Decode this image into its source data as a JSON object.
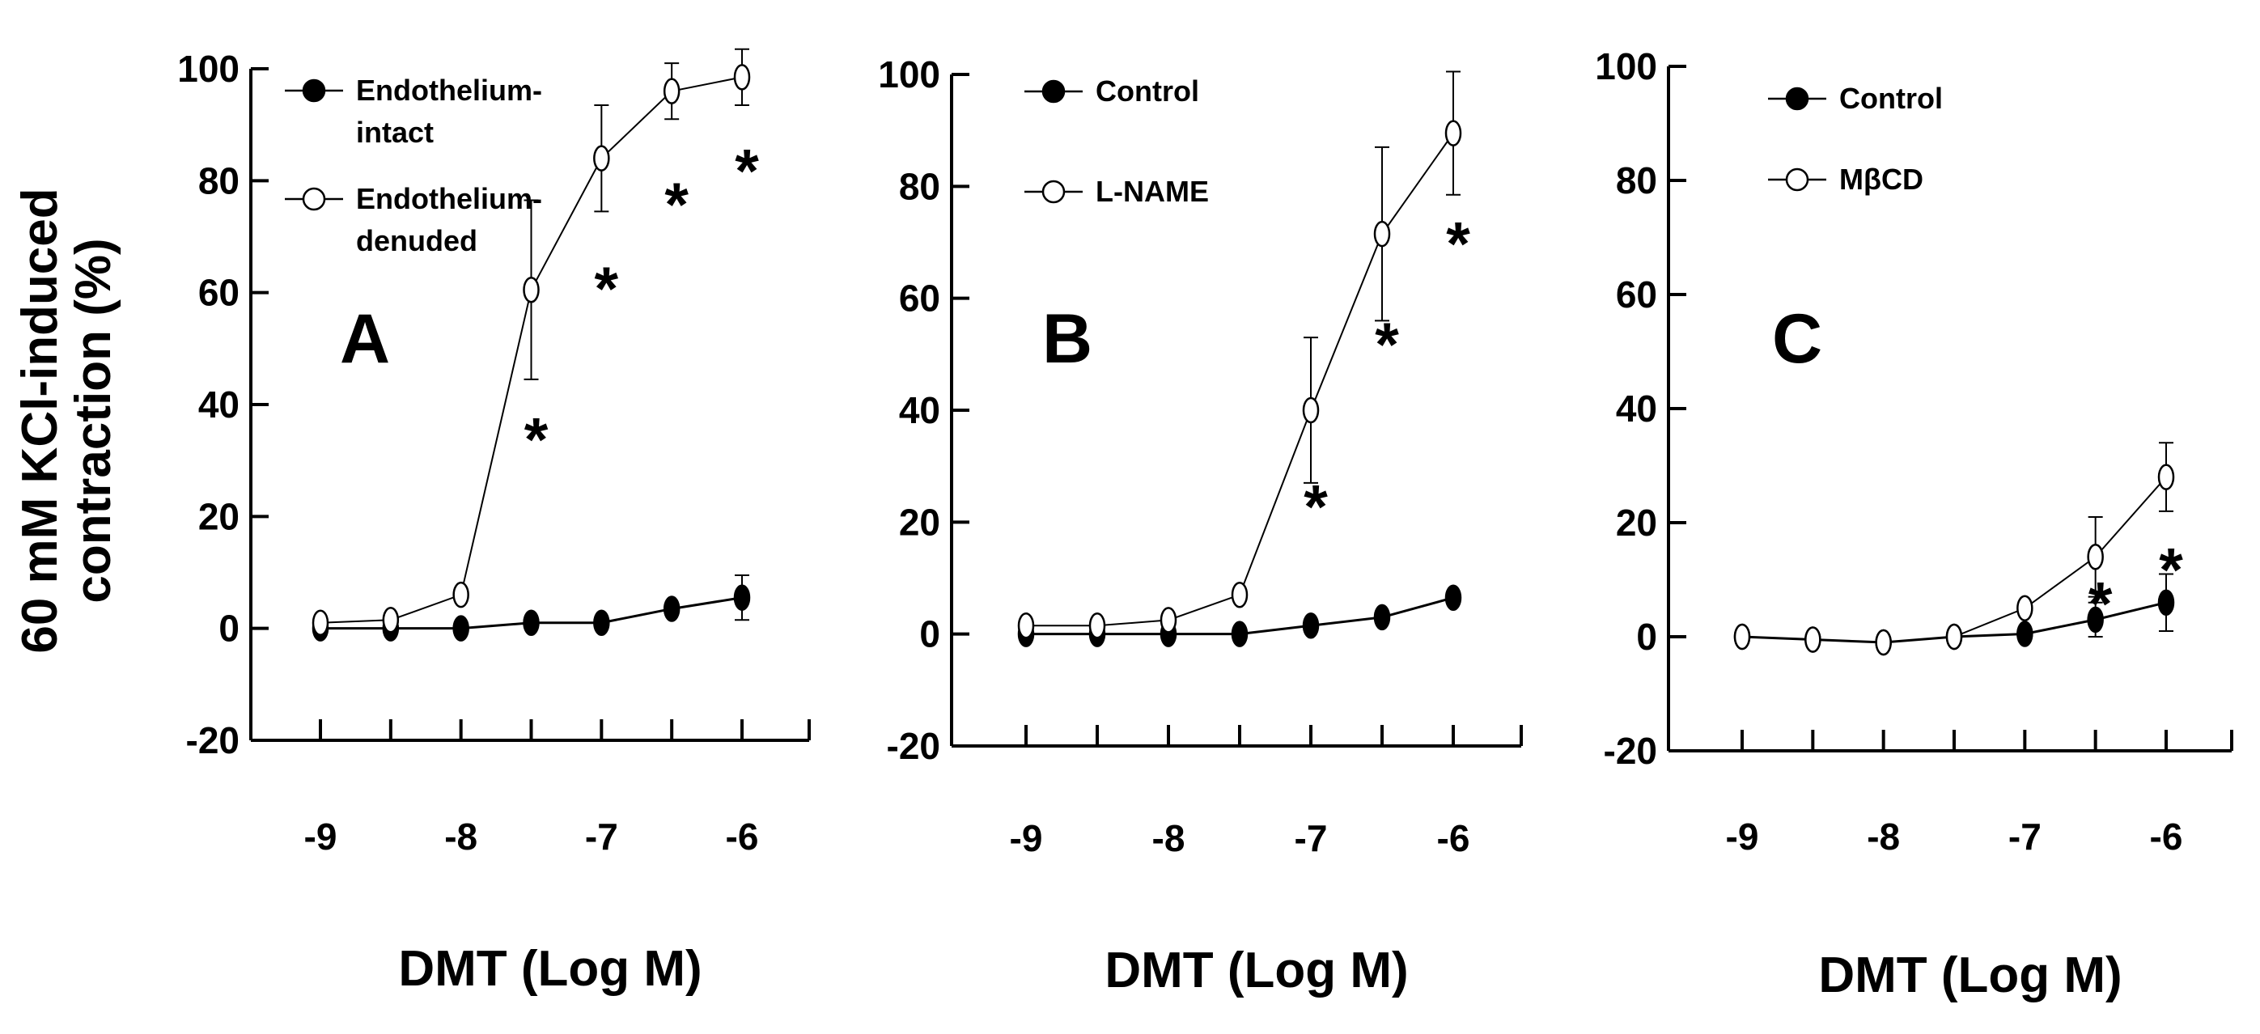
{
  "y_label_lines": [
    "60 mM KCl-induced",
    "contraction (%)"
  ],
  "chart_data": [
    {
      "type": "line",
      "panel_label": "A",
      "xlabel": "DMT (Log M)",
      "ylabel": "60 mM KCl-induced contraction (%)",
      "ylim": [
        -20,
        100
      ],
      "yticks": [
        "100",
        "80",
        "60",
        "40",
        "20",
        "0",
        "-20"
      ],
      "xtick_labels": [
        "-9",
        "-8",
        "-7",
        "-6"
      ],
      "x": [
        -9,
        -8.5,
        -8,
        -7.5,
        -7,
        -6.5,
        -6
      ],
      "series": [
        {
          "name": "Endothelium-intact",
          "legend_lines": [
            "Endothelium-",
            "intact"
          ],
          "marker": "filled",
          "values": [
            0,
            0,
            0,
            1,
            1,
            3.5,
            5.5
          ],
          "errors": [
            0,
            0,
            0,
            0,
            0,
            0,
            4
          ]
        },
        {
          "name": "Endothelium-denuded",
          "legend_lines": [
            "Endothelium-",
            "denuded"
          ],
          "marker": "open",
          "values": [
            1,
            1.5,
            6,
            60.5,
            84,
            96,
            98.5
          ],
          "errors": [
            0,
            0,
            0,
            16,
            9.5,
            5,
            5
          ]
        }
      ],
      "annotations": [
        {
          "text": "*",
          "x": -7.5,
          "y": 34
        },
        {
          "text": "*",
          "x": -7,
          "y": 61
        },
        {
          "text": "*",
          "x": -6.5,
          "y": 76
        },
        {
          "text": "*",
          "x": -6,
          "y": 82
        }
      ]
    },
    {
      "type": "line",
      "panel_label": "B",
      "xlabel": "DMT (Log M)",
      "ylabel": "60 mM KCl-induced contraction (%)",
      "ylim": [
        -20,
        100
      ],
      "yticks": [
        "100",
        "80",
        "60",
        "40",
        "20",
        "0",
        "-20"
      ],
      "xtick_labels": [
        "-9",
        "-8",
        "-7",
        "-6"
      ],
      "x": [
        -9,
        -8.5,
        -8,
        -7.5,
        -7,
        -6.5,
        -6
      ],
      "series": [
        {
          "name": "Control",
          "legend_lines": [
            "Control"
          ],
          "marker": "filled",
          "values": [
            0,
            0,
            0,
            0,
            1.5,
            3,
            6.5
          ],
          "errors": [
            0,
            0,
            0,
            0,
            0,
            0,
            0
          ]
        },
        {
          "name": "L-NAME",
          "legend_lines": [
            "L-NAME"
          ],
          "marker": "open",
          "values": [
            1.5,
            1.5,
            2.5,
            7,
            40,
            71.5,
            89.5
          ],
          "errors": [
            0,
            0,
            0,
            0,
            13,
            15.5,
            11
          ]
        }
      ],
      "annotations": [
        {
          "text": "*",
          "x": -7,
          "y": 23
        },
        {
          "text": "*",
          "x": -6.5,
          "y": 52
        },
        {
          "text": "*",
          "x": -6,
          "y": 70
        }
      ]
    },
    {
      "type": "line",
      "panel_label": "C",
      "xlabel": "DMT (Log M)",
      "ylabel": "60 mM KCl-induced contraction (%)",
      "ylim": [
        -20,
        100
      ],
      "yticks": [
        "100",
        "80",
        "60",
        "40",
        "20",
        "0",
        "-20"
      ],
      "xtick_labels": [
        "-9",
        "-8",
        "-7",
        "-6"
      ],
      "x": [
        -9,
        -8.5,
        -8,
        -7.5,
        -7,
        -6.5,
        -6
      ],
      "series": [
        {
          "name": "Control",
          "legend_lines": [
            "Control"
          ],
          "marker": "filled",
          "values": [
            0,
            -0.5,
            -1,
            0,
            0.5,
            3,
            6
          ],
          "errors": [
            0,
            0,
            0,
            0,
            0,
            3,
            5
          ]
        },
        {
          "name": "MβCD",
          "legend_lines": [
            "MβCD"
          ],
          "marker": "open",
          "values": [
            0,
            -0.5,
            -1,
            0,
            5,
            14,
            28
          ],
          "errors": [
            0,
            0,
            0,
            0,
            0,
            7,
            6
          ]
        }
      ],
      "annotations": [
        {
          "text": "*",
          "x": -6.5,
          "y": 6
        },
        {
          "text": "*",
          "x": -6,
          "y": 12
        }
      ]
    }
  ]
}
